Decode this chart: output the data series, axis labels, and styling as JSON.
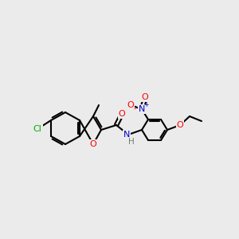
{
  "background_color": "#ebebeb",
  "bond_color": "#000000",
  "colors": {
    "O": "#ff0000",
    "N_amide": "#0000cc",
    "N_nitro": "#0000cc",
    "Cl": "#00aa00",
    "C": "#000000",
    "H": "#555555"
  },
  "figsize": [
    3.0,
    3.0
  ],
  "dpi": 100
}
